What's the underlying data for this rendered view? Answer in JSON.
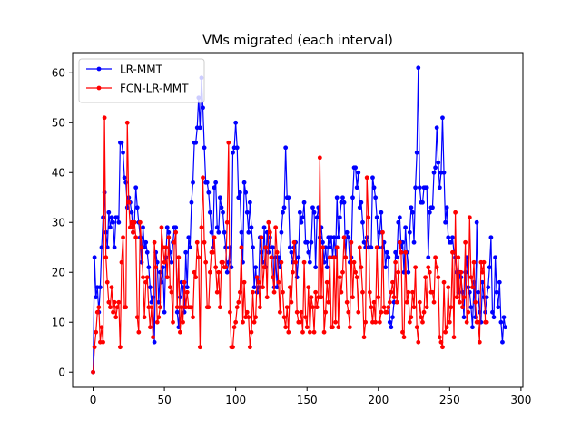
{
  "chart_data": {
    "type": "line",
    "title": "VMs migrated (each interval)",
    "xlabel": "",
    "ylabel": "",
    "xlim": [
      -14.35,
      301.35
    ],
    "ylim": [
      -3.05,
      64.05
    ],
    "xticks": [
      0,
      50,
      100,
      150,
      200,
      250,
      300
    ],
    "yticks": [
      0,
      10,
      20,
      30,
      40,
      50,
      60
    ],
    "grid": false,
    "legend": "top-left",
    "series": [
      {
        "name": "LR-MMT",
        "color": "#0000ff",
        "values": [
          0,
          23,
          15,
          17,
          12,
          17,
          25,
          31,
          36,
          28,
          25,
          32,
          29,
          31,
          30,
          25,
          31,
          31,
          30,
          46,
          46,
          44,
          39,
          38,
          33,
          35,
          34,
          32,
          28,
          30,
          37,
          33,
          30,
          27,
          22,
          29,
          25,
          26,
          24,
          21,
          17,
          14,
          15,
          6,
          24,
          22,
          14,
          20,
          18,
          21,
          12,
          23,
          29,
          28,
          24,
          22,
          26,
          29,
          29,
          12,
          9,
          15,
          18,
          17,
          12,
          24,
          17,
          27,
          25,
          34,
          38,
          46,
          46,
          49,
          55,
          49,
          59,
          53,
          45,
          38,
          38,
          36,
          32,
          28,
          25,
          37,
          38,
          29,
          28,
          35,
          33,
          32,
          28,
          25,
          20,
          22,
          25,
          21,
          44,
          45,
          50,
          45,
          35,
          36,
          28,
          22,
          38,
          36,
          32,
          28,
          34,
          29,
          25,
          17,
          21,
          16,
          17,
          27,
          24,
          22,
          29,
          21,
          28,
          24,
          27,
          25,
          25,
          17,
          23,
          17,
          23,
          21,
          28,
          32,
          33,
          45,
          35,
          35,
          25,
          24,
          22,
          25,
          26,
          19,
          23,
          32,
          30,
          31,
          34,
          26,
          26,
          24,
          22,
          26,
          33,
          32,
          21,
          31,
          33,
          27,
          29,
          26,
          22,
          25,
          21,
          27,
          25,
          27,
          23,
          27,
          23,
          35,
          27,
          31,
          34,
          35,
          34,
          23,
          28,
          27,
          22,
          23,
          35,
          41,
          41,
          37,
          40,
          33,
          34,
          30,
          26,
          25,
          27,
          25,
          25,
          25,
          39,
          37,
          35,
          31,
          25,
          28,
          32,
          25,
          26,
          21,
          24,
          23,
          10,
          9,
          11,
          14,
          24,
          23,
          30,
          31,
          25,
          26,
          20,
          29,
          24,
          20,
          28,
          33,
          32,
          26,
          37,
          44,
          61,
          37,
          34,
          34,
          37,
          37,
          37,
          23,
          32,
          33,
          33,
          40,
          41,
          49,
          42,
          37,
          40,
          51,
          40,
          30,
          33,
          27,
          26,
          26,
          27,
          24,
          23,
          20,
          16,
          20,
          19,
          16,
          11,
          20,
          23,
          17,
          16,
          13,
          9,
          18,
          11,
          30,
          16,
          12,
          10,
          18,
          15,
          12,
          15,
          17,
          21,
          27,
          12,
          11,
          23,
          16,
          13,
          18,
          10,
          6,
          11,
          9
        ]
      },
      {
        "name": "FCN-LR-MMT",
        "color": "#ff0000",
        "values": [
          0,
          5,
          8,
          12,
          13,
          6,
          9,
          6,
          51,
          23,
          18,
          14,
          13,
          17,
          12,
          14,
          11,
          13,
          14,
          5,
          22,
          27,
          13,
          13,
          50,
          34,
          29,
          30,
          28,
          30,
          27,
          11,
          8,
          30,
          25,
          19,
          11,
          18,
          19,
          13,
          9,
          13,
          7,
          26,
          21,
          10,
          11,
          13,
          29,
          25,
          22,
          25,
          19,
          27,
          17,
          16,
          10,
          26,
          28,
          13,
          23,
          8,
          13,
          10,
          18,
          13,
          16,
          13,
          13,
          13,
          11,
          20,
          19,
          26,
          23,
          5,
          29,
          39,
          26,
          22,
          13,
          13,
          20,
          24,
          24,
          27,
          21,
          16,
          20,
          13,
          22,
          22,
          21,
          21,
          30,
          46,
          12,
          5,
          5,
          9,
          10,
          13,
          14,
          16,
          25,
          10,
          18,
          11,
          12,
          11,
          5,
          8,
          16,
          10,
          11,
          19,
          18,
          13,
          27,
          17,
          21,
          25,
          15,
          30,
          28,
          23,
          19,
          16,
          29,
          24,
          18,
          12,
          22,
          16,
          11,
          9,
          13,
          8,
          17,
          14,
          20,
          26,
          22,
          12,
          10,
          10,
          12,
          8,
          22,
          11,
          9,
          17,
          8,
          15,
          13,
          8,
          16,
          13,
          15,
          43,
          15,
          25,
          8,
          12,
          18,
          14,
          23,
          9,
          9,
          23,
          10,
          25,
          9,
          19,
          16,
          20,
          27,
          23,
          14,
          12,
          9,
          26,
          15,
          22,
          20,
          19,
          12,
          25,
          21,
          16,
          7,
          10,
          39,
          31,
          16,
          13,
          10,
          14,
          10,
          25,
          15,
          10,
          12,
          28,
          13,
          12,
          12,
          13,
          14,
          16,
          18,
          15,
          22,
          14,
          20,
          26,
          24,
          8,
          7,
          24,
          14,
          16,
          10,
          11,
          16,
          13,
          21,
          9,
          6,
          14,
          11,
          10,
          12,
          19,
          13,
          21,
          20,
          16,
          16,
          14,
          23,
          21,
          19,
          7,
          6,
          5,
          18,
          8,
          9,
          17,
          10,
          13,
          24,
          7,
          32,
          15,
          23,
          14,
          20,
          13,
          15,
          26,
          10,
          12,
          31,
          19,
          17,
          22,
          14,
          10,
          10,
          6,
          22,
          20,
          22,
          10,
          10
        ]
      }
    ]
  }
}
